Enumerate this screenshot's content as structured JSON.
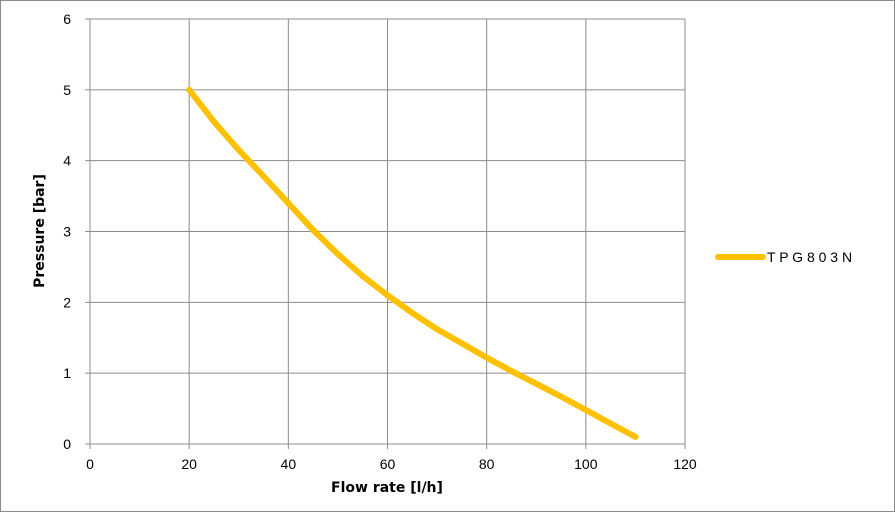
{
  "chart_data": {
    "type": "line",
    "title": "",
    "xlabel": "Flow rate [l/h]",
    "ylabel": "Pressure [bar]",
    "xlim": [
      0,
      120
    ],
    "ylim": [
      0,
      6
    ],
    "x_ticks": [
      0,
      20,
      40,
      60,
      80,
      100,
      120
    ],
    "y_ticks": [
      0,
      1,
      2,
      3,
      4,
      5,
      6
    ],
    "grid": true,
    "legend_position": "right",
    "series": [
      {
        "name": "T P G 8 0 3 N",
        "color": "#FFC000",
        "x": [
          20,
          25,
          30,
          35,
          40,
          45,
          50,
          55,
          60,
          65,
          70,
          75,
          80,
          85,
          90,
          95,
          100,
          105,
          110
        ],
        "y": [
          5.0,
          4.55,
          4.15,
          3.78,
          3.4,
          3.02,
          2.68,
          2.37,
          2.1,
          1.85,
          1.62,
          1.42,
          1.22,
          1.03,
          0.85,
          0.67,
          0.48,
          0.29,
          0.1
        ]
      }
    ]
  }
}
